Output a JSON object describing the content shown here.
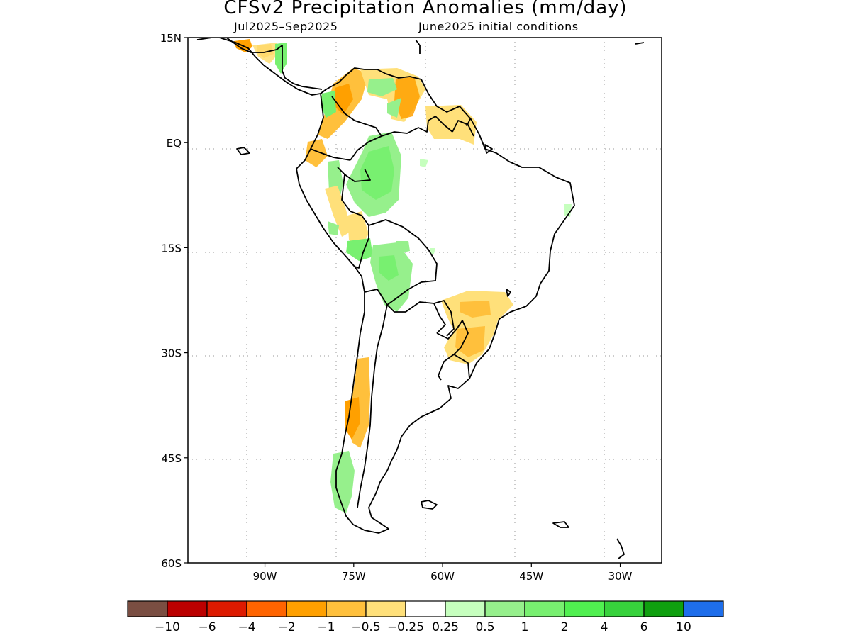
{
  "title": "CFSv2 Precipitation Anomalies (mm/day)",
  "subtitle_left": "Jul2025–Sep2025",
  "subtitle_right": "June2025 initial conditions",
  "map": {
    "region": "South America",
    "lon_range": [
      -103,
      -23
    ],
    "lat_range": [
      -60,
      15
    ],
    "lat_ticks": [
      {
        "value": 15,
        "label": "15N"
      },
      {
        "value": 0,
        "label": "EQ"
      },
      {
        "value": -15,
        "label": "15S"
      },
      {
        "value": -30,
        "label": "30S"
      },
      {
        "value": -45,
        "label": "45S"
      },
      {
        "value": -60,
        "label": "60S"
      }
    ],
    "lon_ticks": [
      {
        "value": -90,
        "label": "90W"
      },
      {
        "value": -75,
        "label": "75W"
      },
      {
        "value": -60,
        "label": "60W"
      },
      {
        "value": -45,
        "label": "45W"
      },
      {
        "value": -30,
        "label": "30W"
      }
    ],
    "grid": "dotted"
  },
  "colorbar": {
    "colors": [
      "#7a4e42",
      "#bb0000",
      "#dd1a00",
      "#ff6400",
      "#ffa000",
      "#ffc03c",
      "#ffe07a",
      "#ffffff",
      "#c6ffbe",
      "#96f08c",
      "#78f070",
      "#50f050",
      "#37d23c",
      "#0fa00f",
      "#1e6eeb"
    ],
    "labels": [
      "−10",
      "−6",
      "−4",
      "−2",
      "−1",
      "−0.5",
      "−0.25",
      "0.25",
      "0.5",
      "1",
      "2",
      "4",
      "6",
      "10"
    ]
  }
}
